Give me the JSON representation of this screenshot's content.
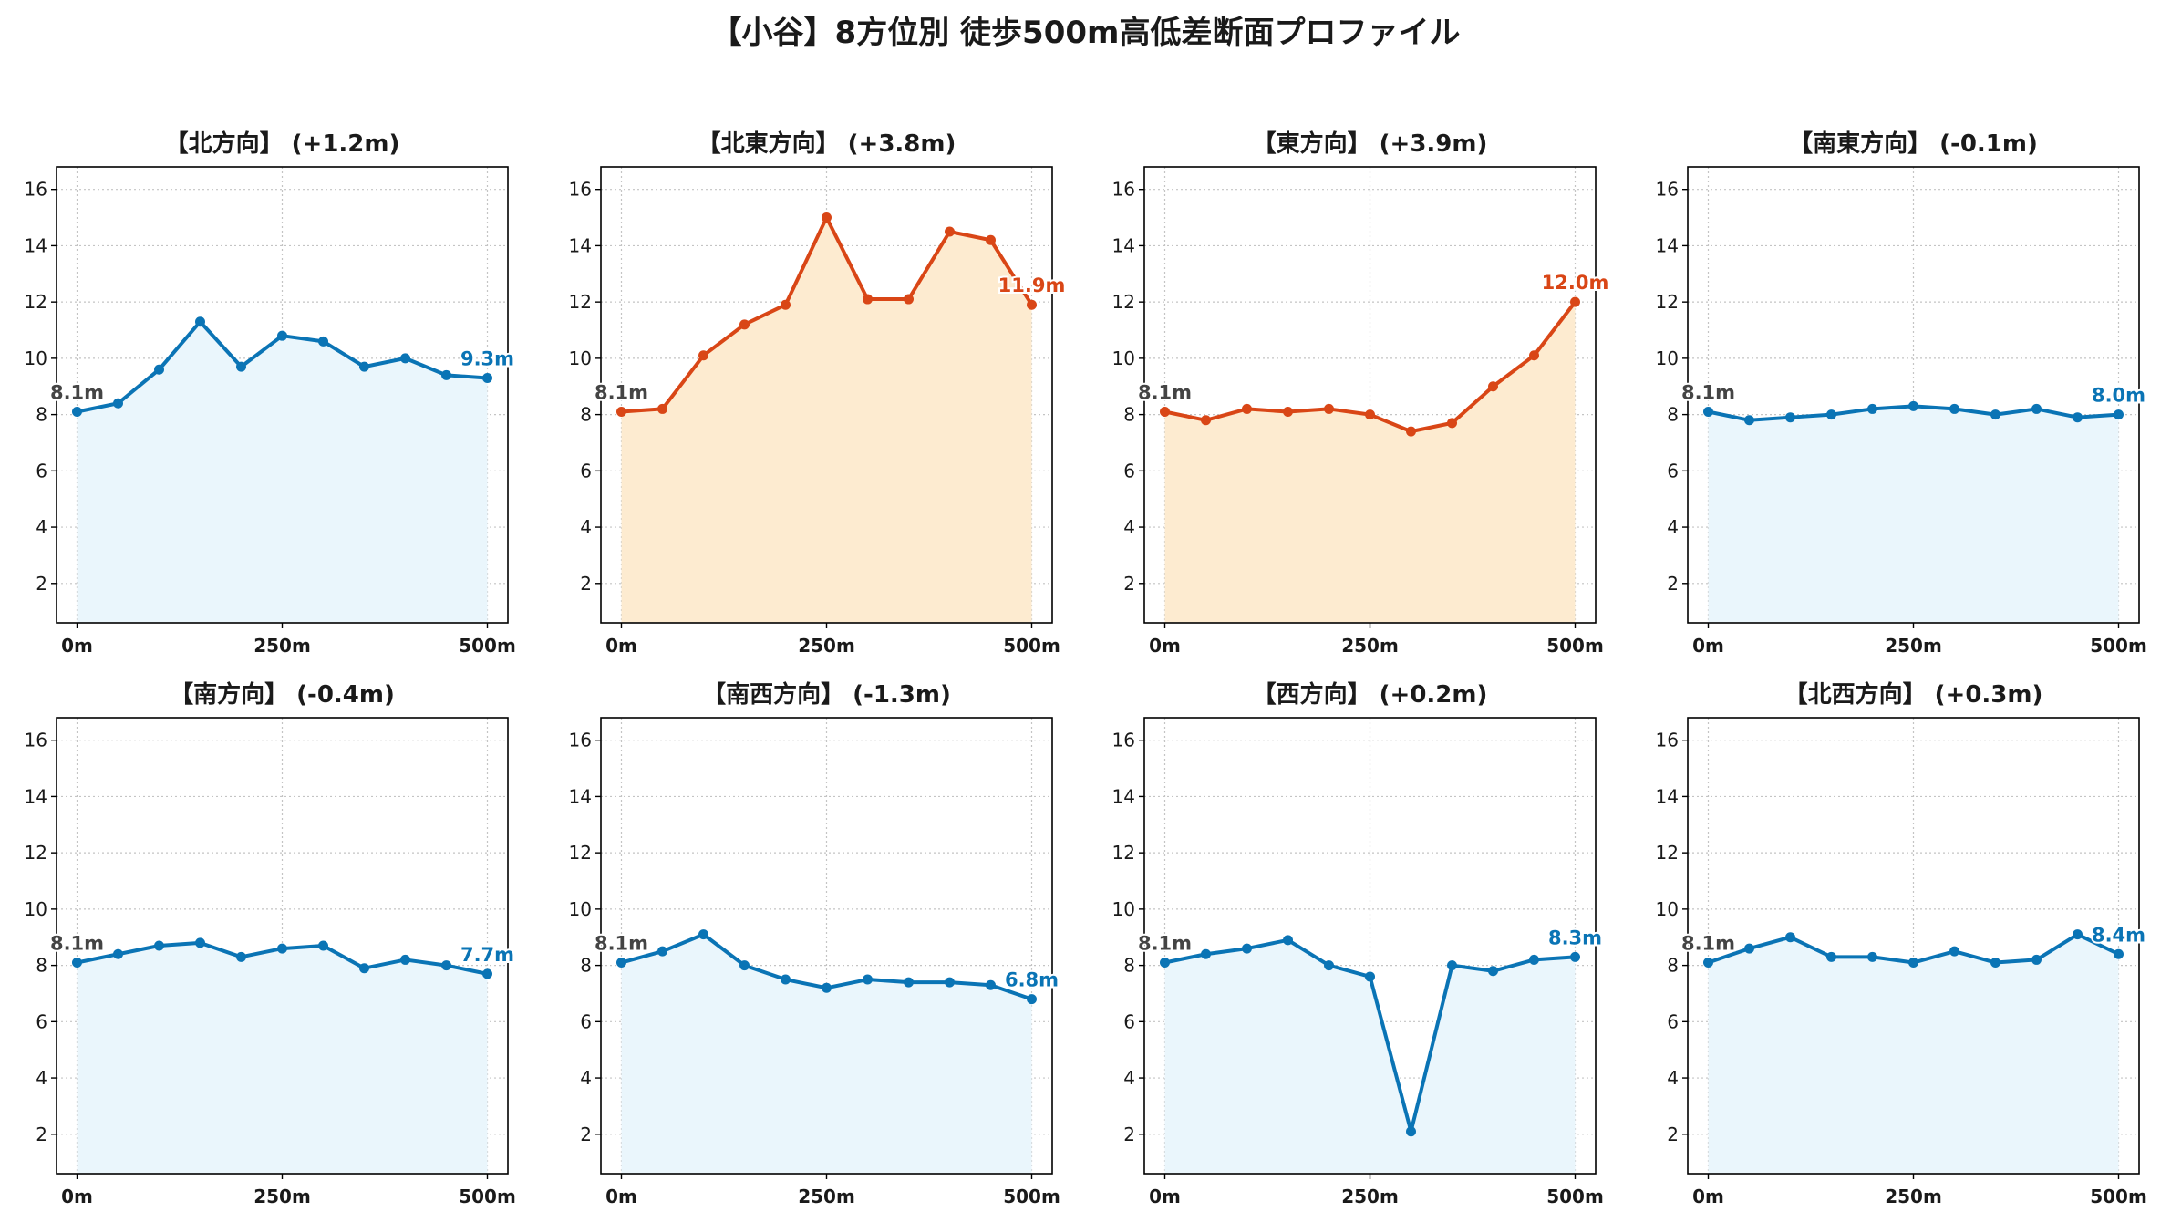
{
  "figure": {
    "title": "【小谷】8方位別 徒歩500m高低差断面プロファイル"
  },
  "colors": {
    "up": "#d94616",
    "up_fill": "#fdebd0",
    "flat": "#0a74b5",
    "flat_fill": "#eaf6fc"
  },
  "chart_data": [
    {
      "type": "area",
      "title": "【北方向】 (+1.2m)",
      "x": [
        0,
        50,
        100,
        150,
        200,
        250,
        300,
        350,
        400,
        450,
        500
      ],
      "y": [
        8.1,
        8.4,
        9.6,
        11.3,
        9.7,
        10.8,
        10.6,
        9.7,
        10.0,
        9.4,
        9.3
      ],
      "xticks": [
        "0m",
        "250m",
        "500m"
      ],
      "yticks": [
        2,
        4,
        6,
        8,
        10,
        12,
        14,
        16
      ],
      "ylim": [
        0.6,
        16.8
      ],
      "xlim": [
        -25,
        525
      ],
      "grid": true,
      "trend": "flat",
      "start_label": "8.1m",
      "end_label": "9.3m"
    },
    {
      "type": "area",
      "title": "【北東方向】 (+3.8m)",
      "x": [
        0,
        50,
        100,
        150,
        200,
        250,
        300,
        350,
        400,
        450,
        500
      ],
      "y": [
        8.1,
        8.2,
        10.1,
        11.2,
        11.9,
        15.0,
        12.1,
        12.1,
        14.5,
        14.2,
        11.9
      ],
      "xticks": [
        "0m",
        "250m",
        "500m"
      ],
      "yticks": [
        2,
        4,
        6,
        8,
        10,
        12,
        14,
        16
      ],
      "ylim": [
        0.6,
        16.8
      ],
      "xlim": [
        -25,
        525
      ],
      "grid": true,
      "trend": "up",
      "start_label": "8.1m",
      "end_label": "11.9m"
    },
    {
      "type": "area",
      "title": "【東方向】 (+3.9m)",
      "x": [
        0,
        50,
        100,
        150,
        200,
        250,
        300,
        350,
        400,
        450,
        500
      ],
      "y": [
        8.1,
        7.8,
        8.2,
        8.1,
        8.2,
        8.0,
        7.4,
        7.7,
        9.0,
        10.1,
        12.0
      ],
      "xticks": [
        "0m",
        "250m",
        "500m"
      ],
      "yticks": [
        2,
        4,
        6,
        8,
        10,
        12,
        14,
        16
      ],
      "ylim": [
        0.6,
        16.8
      ],
      "xlim": [
        -25,
        525
      ],
      "grid": true,
      "trend": "up",
      "start_label": "8.1m",
      "end_label": "12.0m"
    },
    {
      "type": "area",
      "title": "【南東方向】 (-0.1m)",
      "x": [
        0,
        50,
        100,
        150,
        200,
        250,
        300,
        350,
        400,
        450,
        500
      ],
      "y": [
        8.1,
        7.8,
        7.9,
        8.0,
        8.2,
        8.3,
        8.2,
        8.0,
        8.2,
        7.9,
        8.0
      ],
      "xticks": [
        "0m",
        "250m",
        "500m"
      ],
      "yticks": [
        2,
        4,
        6,
        8,
        10,
        12,
        14,
        16
      ],
      "ylim": [
        0.6,
        16.8
      ],
      "xlim": [
        -25,
        525
      ],
      "grid": true,
      "trend": "flat",
      "start_label": "8.1m",
      "end_label": "8.0m"
    },
    {
      "type": "area",
      "title": "【南方向】 (-0.4m)",
      "x": [
        0,
        50,
        100,
        150,
        200,
        250,
        300,
        350,
        400,
        450,
        500
      ],
      "y": [
        8.1,
        8.4,
        8.7,
        8.8,
        8.3,
        8.6,
        8.7,
        7.9,
        8.2,
        8.0,
        7.7
      ],
      "xticks": [
        "0m",
        "250m",
        "500m"
      ],
      "yticks": [
        2,
        4,
        6,
        8,
        10,
        12,
        14,
        16
      ],
      "ylim": [
        0.6,
        16.8
      ],
      "xlim": [
        -25,
        525
      ],
      "grid": true,
      "trend": "flat",
      "start_label": "8.1m",
      "end_label": "7.7m"
    },
    {
      "type": "area",
      "title": "【南西方向】 (-1.3m)",
      "x": [
        0,
        50,
        100,
        150,
        200,
        250,
        300,
        350,
        400,
        450,
        500
      ],
      "y": [
        8.1,
        8.5,
        9.1,
        8.0,
        7.5,
        7.2,
        7.5,
        7.4,
        7.4,
        7.3,
        6.8
      ],
      "xticks": [
        "0m",
        "250m",
        "500m"
      ],
      "yticks": [
        2,
        4,
        6,
        8,
        10,
        12,
        14,
        16
      ],
      "ylim": [
        0.6,
        16.8
      ],
      "xlim": [
        -25,
        525
      ],
      "grid": true,
      "trend": "flat",
      "start_label": "8.1m",
      "end_label": "6.8m"
    },
    {
      "type": "area",
      "title": "【西方向】 (+0.2m)",
      "x": [
        0,
        50,
        100,
        150,
        200,
        250,
        300,
        350,
        400,
        450,
        500
      ],
      "y": [
        8.1,
        8.4,
        8.6,
        8.9,
        8.0,
        7.6,
        2.1,
        8.0,
        7.8,
        8.2,
        8.3
      ],
      "xticks": [
        "0m",
        "250m",
        "500m"
      ],
      "yticks": [
        2,
        4,
        6,
        8,
        10,
        12,
        14,
        16
      ],
      "ylim": [
        0.6,
        16.8
      ],
      "xlim": [
        -25,
        525
      ],
      "grid": true,
      "trend": "flat",
      "start_label": "8.1m",
      "end_label": "8.3m"
    },
    {
      "type": "area",
      "title": "【北西方向】 (+0.3m)",
      "x": [
        0,
        50,
        100,
        150,
        200,
        250,
        300,
        350,
        400,
        450,
        500
      ],
      "y": [
        8.1,
        8.6,
        9.0,
        8.3,
        8.3,
        8.1,
        8.5,
        8.1,
        8.2,
        9.1,
        8.4
      ],
      "xticks": [
        "0m",
        "250m",
        "500m"
      ],
      "yticks": [
        2,
        4,
        6,
        8,
        10,
        12,
        14,
        16
      ],
      "ylim": [
        0.6,
        16.8
      ],
      "xlim": [
        -25,
        525
      ],
      "grid": true,
      "trend": "flat",
      "start_label": "8.1m",
      "end_label": "8.4m"
    }
  ]
}
